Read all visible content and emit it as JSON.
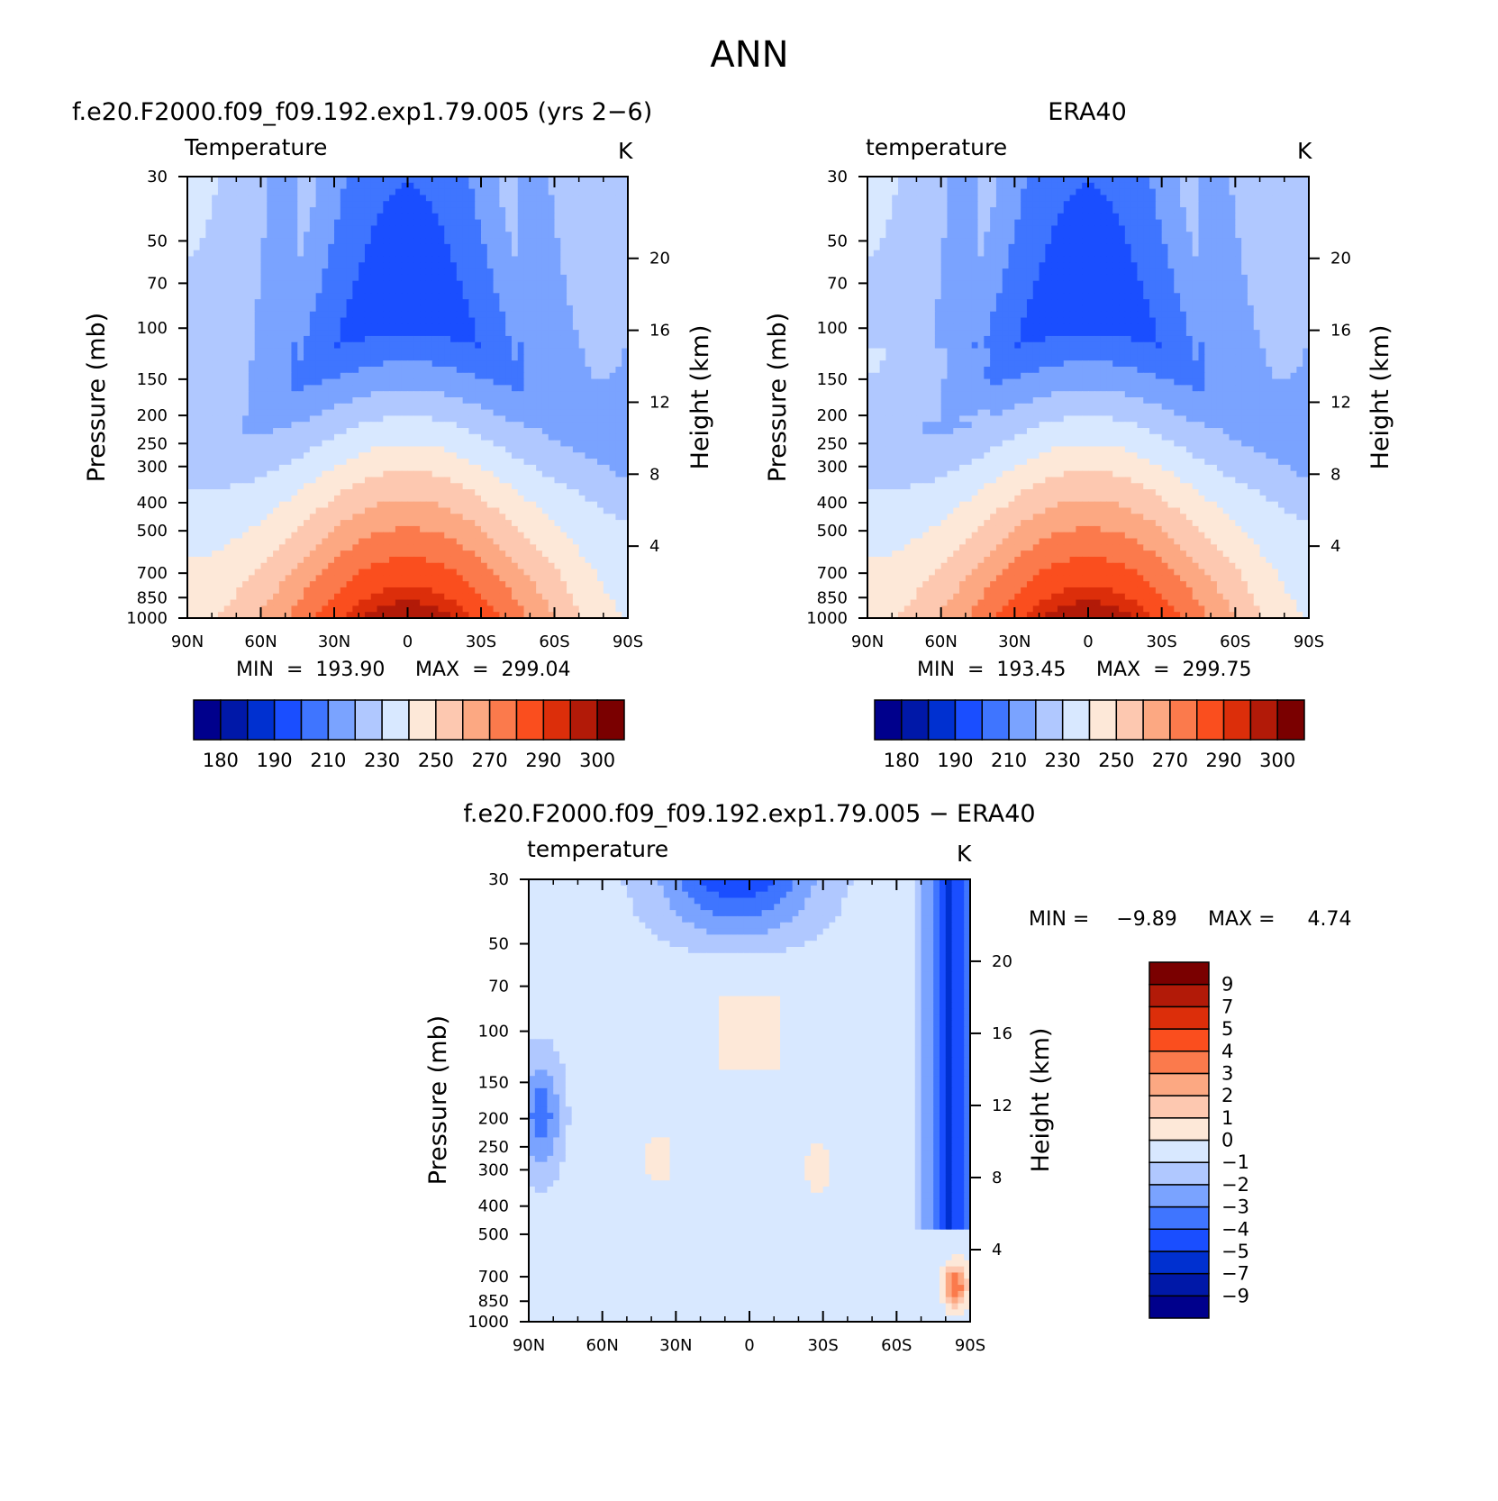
{
  "figure_title": "ANN",
  "colors": {
    "temp_levels": [
      "#00008c",
      "#0018a8",
      "#0030d0",
      "#1a4eff",
      "#3f75ff",
      "#7aa3ff",
      "#b0c8ff",
      "#d8e8ff",
      "#fde8d8",
      "#fdc8b0",
      "#fca882",
      "#fb7a4c",
      "#fa4e1e",
      "#dc2e0a",
      "#b21a08",
      "#7a0000"
    ],
    "diff_levels": [
      "#00008c",
      "#0018a8",
      "#0030d0",
      "#1a4eff",
      "#3f75ff",
      "#7aa3ff",
      "#b0c8ff",
      "#d8e8ff",
      "#fde8d8",
      "#fdc8b0",
      "#fca882",
      "#fb7a4c",
      "#fa4e1e",
      "#dc2e0a",
      "#b21a08",
      "#7a0000"
    ]
  },
  "chart_data": [
    {
      "type": "contour",
      "panel_title": "f.e20.F2000.f09_f09.192.exp1.79.005 (yrs 2−6)",
      "left_label": "Temperature",
      "right_label": "K",
      "ylabel": "Pressure (mb)",
      "y2label": "Height (km)",
      "x_ticks": [
        "90N",
        "60N",
        "30N",
        "0",
        "30S",
        "60S",
        "90S"
      ],
      "y_ticks": [
        "30",
        "50",
        "70",
        "100",
        "150",
        "200",
        "250",
        "300",
        "400",
        "500",
        "700",
        "850",
        "1000"
      ],
      "y2_ticks": [
        "20",
        "16",
        "12",
        "8",
        "4"
      ],
      "xlim": [
        "90N",
        "90S"
      ],
      "ylim": [
        1000,
        30
      ],
      "min_label": "MIN",
      "min": "193.90",
      "max_label": "MAX",
      "max": "299.04",
      "colorbar_labels": [
        "180",
        "190",
        "210",
        "230",
        "250",
        "270",
        "290",
        "300"
      ]
    },
    {
      "type": "contour",
      "panel_title": "ERA40",
      "left_label": "temperature",
      "right_label": "K",
      "ylabel": "Pressure (mb)",
      "y2label": "Height (km)",
      "x_ticks": [
        "90N",
        "60N",
        "30N",
        "0",
        "30S",
        "60S",
        "90S"
      ],
      "y_ticks": [
        "30",
        "50",
        "70",
        "100",
        "150",
        "200",
        "250",
        "300",
        "400",
        "500",
        "700",
        "850",
        "1000"
      ],
      "y2_ticks": [
        "20",
        "16",
        "12",
        "8",
        "4"
      ],
      "xlim": [
        "90N",
        "90S"
      ],
      "ylim": [
        1000,
        30
      ],
      "min_label": "MIN",
      "min": "193.45",
      "max_label": "MAX",
      "max": "299.75",
      "colorbar_labels": [
        "180",
        "190",
        "210",
        "230",
        "250",
        "270",
        "290",
        "300"
      ]
    },
    {
      "type": "contour",
      "panel_title": "f.e20.F2000.f09_f09.192.exp1.79.005 − ERA40",
      "left_label": "temperature",
      "right_label": "K",
      "ylabel": "Pressure (mb)",
      "y2label": "Height (km)",
      "x_ticks": [
        "90N",
        "60N",
        "30N",
        "0",
        "30S",
        "60S",
        "90S"
      ],
      "y_ticks": [
        "30",
        "50",
        "70",
        "100",
        "150",
        "200",
        "250",
        "300",
        "400",
        "500",
        "700",
        "850",
        "1000"
      ],
      "y2_ticks": [
        "20",
        "16",
        "12",
        "8",
        "4"
      ],
      "xlim": [
        "90N",
        "90S"
      ],
      "ylim": [
        1000,
        30
      ],
      "min_label": "MIN =",
      "min": "−9.89",
      "max_label": "MAX =",
      "max": "4.74",
      "colorbar_labels": [
        "9",
        "7",
        "5",
        "4",
        "3",
        "2",
        "1",
        "0",
        "−1",
        "−2",
        "−3",
        "−4",
        "−5",
        "−7",
        "−9"
      ]
    }
  ]
}
